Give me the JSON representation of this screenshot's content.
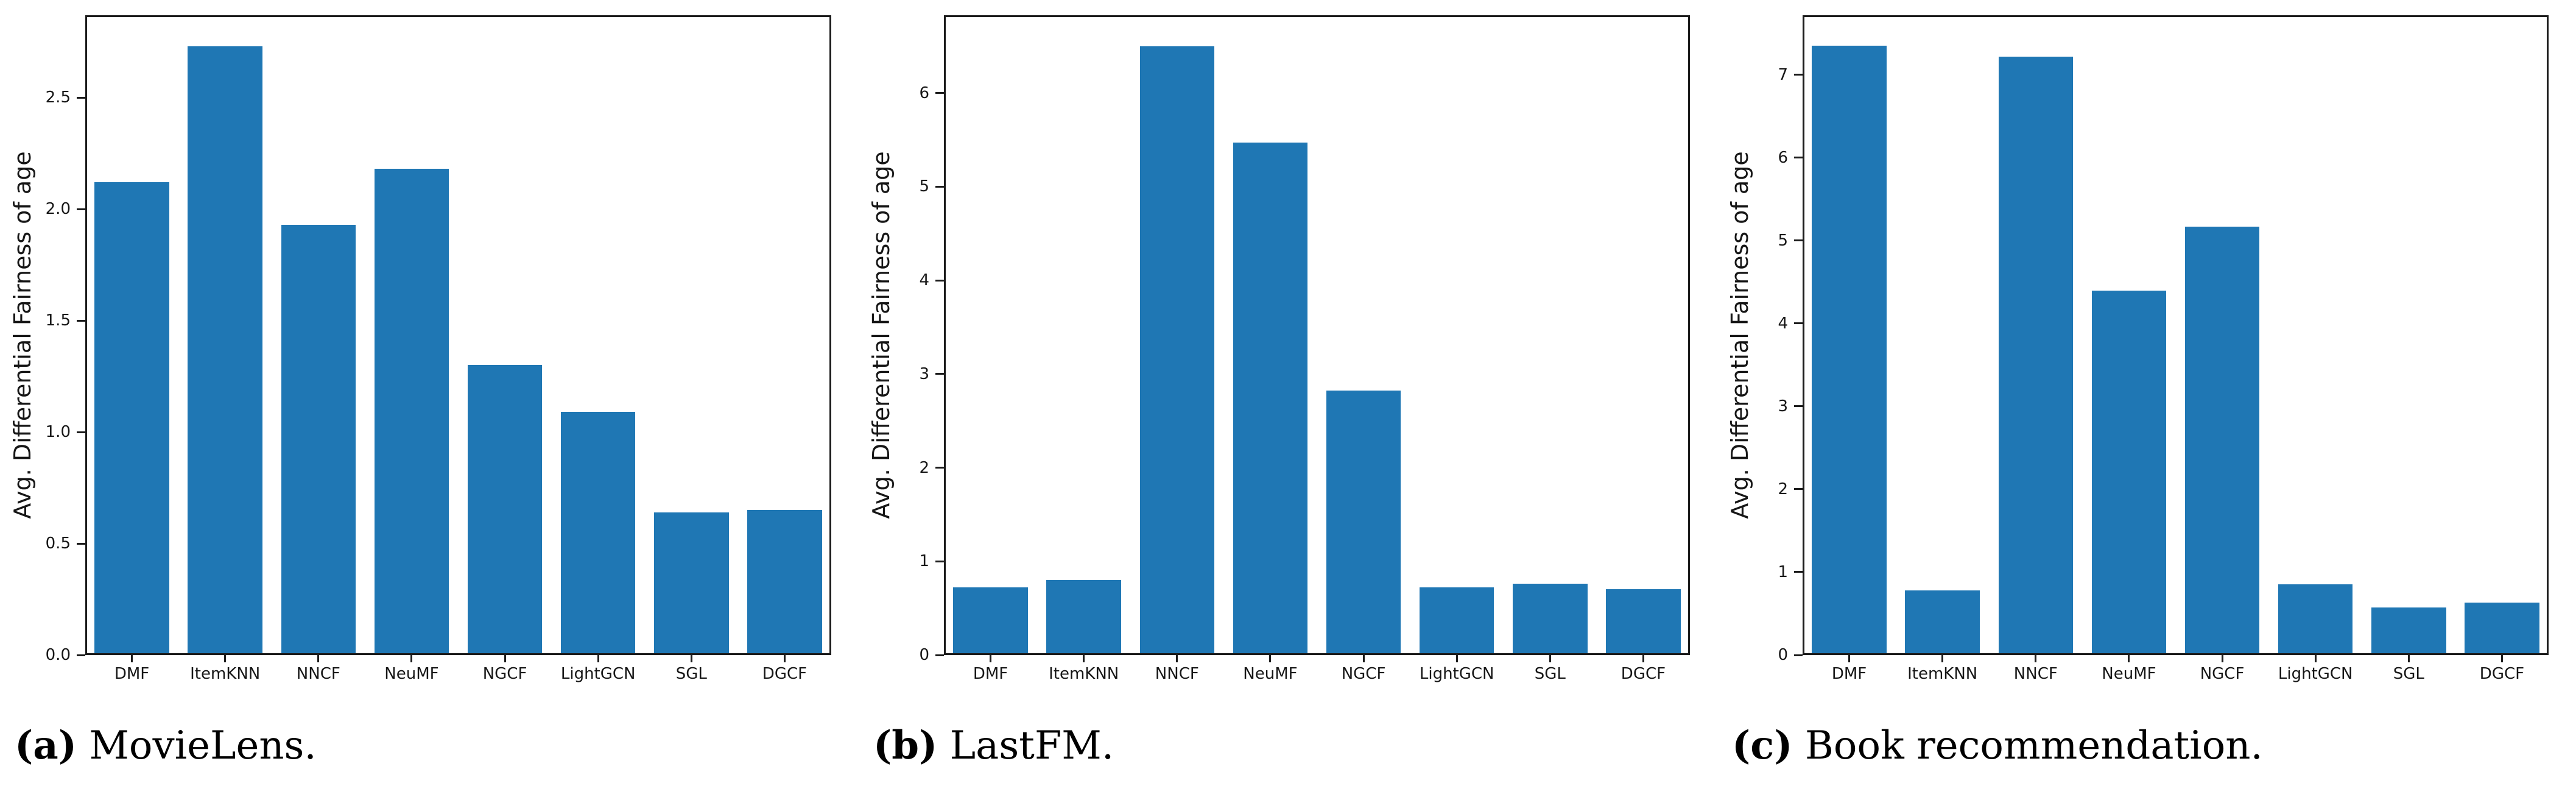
{
  "page": {
    "background": "#ffffff"
  },
  "colors": {
    "bar": "#1f77b4",
    "axis": "#1c1c1c",
    "text": "#161616"
  },
  "captions": [
    {
      "label": "(a)",
      "text": "MovieLens."
    },
    {
      "label": "(b)",
      "text": "LastFM."
    },
    {
      "label": "(c)",
      "text": "Book recommendation."
    }
  ],
  "chart_data": [
    {
      "type": "bar",
      "title": "",
      "categories": [
        "DMF",
        "ItemKNN",
        "NNCF",
        "NeuMF",
        "NGCF",
        "LightGCN",
        "SGL",
        "DGCF"
      ],
      "values": [
        2.12,
        2.73,
        1.93,
        2.18,
        1.3,
        1.09,
        0.64,
        0.65
      ],
      "xlabel": "",
      "ylabel": "Avg. Differential Fairness of age",
      "yticks": [
        0,
        0.5,
        1.0,
        1.5,
        2.0,
        2.5
      ],
      "ytick_labels": [
        "0.0",
        "0.5",
        "1.0",
        "1.5",
        "2.0",
        "2.5"
      ],
      "ylim": [
        0,
        2.87
      ],
      "grid": false,
      "legend": "none",
      "bar_color": "#1f77b4"
    },
    {
      "type": "bar",
      "title": "",
      "categories": [
        "DMF",
        "ItemKNN",
        "NNCF",
        "NeuMF",
        "NGCF",
        "LightGCN",
        "SGL",
        "DGCF"
      ],
      "values": [
        0.72,
        0.8,
        6.5,
        5.47,
        2.82,
        0.72,
        0.76,
        0.7
      ],
      "xlabel": "",
      "ylabel": "Avg. Differential Fairness of age",
      "yticks": [
        0,
        1,
        2,
        3,
        4,
        5,
        6
      ],
      "ytick_labels": [
        "0",
        "1",
        "2",
        "3",
        "4",
        "5",
        "6"
      ],
      "ylim": [
        0,
        6.83
      ],
      "grid": false,
      "legend": "none",
      "bar_color": "#1f77b4"
    },
    {
      "type": "bar",
      "title": "",
      "categories": [
        "DMF",
        "ItemKNN",
        "NNCF",
        "NeuMF",
        "NGCF",
        "LightGCN",
        "SGL",
        "DGCF"
      ],
      "values": [
        7.35,
        0.78,
        7.22,
        4.4,
        5.17,
        0.85,
        0.57,
        0.63
      ],
      "xlabel": "",
      "ylabel": "Avg. Differential Fairness of age",
      "yticks": [
        0,
        1,
        2,
        3,
        4,
        5,
        6,
        7
      ],
      "ytick_labels": [
        "0",
        "1",
        "2",
        "3",
        "4",
        "5",
        "6",
        "7"
      ],
      "ylim": [
        0,
        7.72
      ],
      "grid": false,
      "legend": "none",
      "bar_color": "#1f77b4"
    }
  ]
}
